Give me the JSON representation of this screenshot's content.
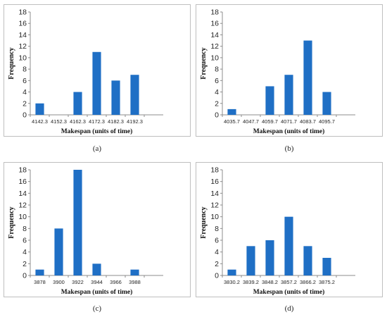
{
  "chart_data": [
    {
      "type": "bar",
      "caption": "(a)",
      "categories": [
        "4142.3",
        "4152.3",
        "4162.3",
        "4172.3",
        "4182.3",
        "4192.3"
      ],
      "values": [
        2,
        0,
        4,
        11,
        6,
        7
      ],
      "xlabel": "Makespan (units of time)",
      "ylabel": "Frequency",
      "ylim": [
        0,
        18
      ],
      "yticks": [
        "0",
        "2",
        "4",
        "6",
        "8",
        "10",
        "12",
        "14",
        "16",
        "18"
      ],
      "color": "#1f6fc5"
    },
    {
      "type": "bar",
      "caption": "(b)",
      "categories": [
        "4035.7",
        "4047.7",
        "4059.7",
        "4071.7",
        "4083.7",
        "4095.7"
      ],
      "values": [
        1,
        0,
        5,
        7,
        13,
        4
      ],
      "xlabel": "Makespan (units of time)",
      "ylabel": "Frequency",
      "ylim": [
        0,
        18
      ],
      "yticks": [
        "0",
        "2",
        "4",
        "6",
        "8",
        "10",
        "12",
        "14",
        "16",
        "18"
      ],
      "color": "#1f6fc5"
    },
    {
      "type": "bar",
      "caption": "(c)",
      "categories": [
        "3878",
        "3900",
        "3922",
        "3944",
        "3966",
        "3988"
      ],
      "values": [
        1,
        8,
        18,
        2,
        0,
        1
      ],
      "xlabel": "Makespan (units of time)",
      "ylabel": "Frequency",
      "ylim": [
        0,
        18
      ],
      "yticks": [
        "0",
        "2",
        "4",
        "6",
        "8",
        "10",
        "12",
        "14",
        "16",
        "18"
      ],
      "color": "#1f6fc5"
    },
    {
      "type": "bar",
      "caption": "(d)",
      "categories": [
        "3830.2",
        "3839.2",
        "3848.2",
        "3857.2",
        "3866.2",
        "3875.2"
      ],
      "values": [
        1,
        5,
        6,
        10,
        5,
        3
      ],
      "xlabel": "Makespan (units of time)",
      "ylabel": "Frequency",
      "ylim": [
        0,
        18
      ],
      "yticks": [
        "0",
        "2",
        "4",
        "6",
        "8",
        "10",
        "12",
        "14",
        "16",
        "18"
      ],
      "color": "#1f6fc5"
    }
  ]
}
